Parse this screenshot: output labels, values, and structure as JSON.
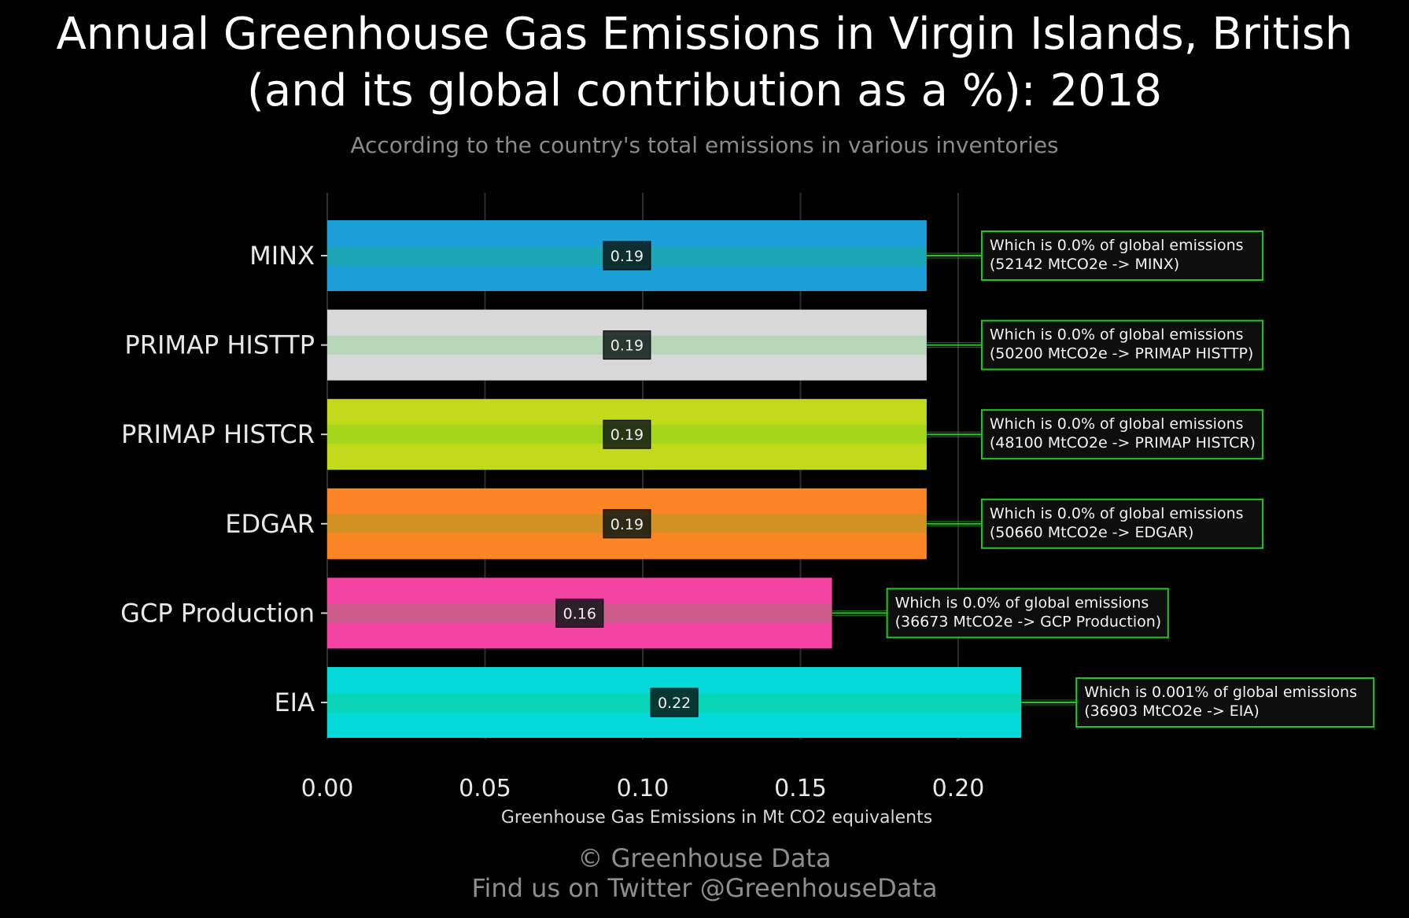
{
  "title_line1": "Annual Greenhouse Gas Emissions in Virgin Islands, British",
  "title_line2": "(and its global contribution as a %): 2018",
  "subtitle": "According to the country's total emissions in various inventories",
  "credit_line1": "© Greenhouse Data",
  "credit_line2": "Find us on Twitter @GreenhouseData",
  "chart_data": {
    "type": "bar",
    "orientation": "horizontal",
    "categories": [
      "MINX",
      "PRIMAP HISTTP",
      "PRIMAP HISTCR",
      "EDGAR",
      "GCP Production",
      "EIA"
    ],
    "values": [
      0.19,
      0.19,
      0.19,
      0.19,
      0.16,
      0.22
    ],
    "value_labels": [
      "0.19",
      "0.19",
      "0.19",
      "0.19",
      "0.16",
      "0.22"
    ],
    "colors": [
      "#1ca0d8",
      "#d8d8d8",
      "#c2d91c",
      "#fb8424",
      "#f344a4",
      "#04d8d8"
    ],
    "annotations": [
      [
        "Which is 0.0% of global emissions",
        "(52142 MtCO2e -> MINX)"
      ],
      [
        "Which is 0.0% of global emissions",
        "(50200 MtCO2e -> PRIMAP HISTTP)"
      ],
      [
        "Which is 0.0% of global emissions",
        "(48100 MtCO2e -> PRIMAP HISTCR)"
      ],
      [
        "Which is 0.0% of global emissions",
        "(50660 MtCO2e -> EDGAR)"
      ],
      [
        "Which is 0.0% of global emissions",
        "(36673 MtCO2e -> GCP Production)"
      ],
      [
        "Which is 0.001% of global emissions",
        "(36903 MtCO2e -> EIA)"
      ]
    ],
    "xlabel": "Greenhouse Gas Emissions in Mt CO2 equivalents",
    "xticks": [
      "0.00",
      "0.05",
      "0.10",
      "0.15",
      "0.20"
    ],
    "xtick_values": [
      0,
      0.05,
      0.1,
      0.15,
      0.2
    ],
    "xlim": [
      0,
      0.24
    ],
    "grid": "vertical",
    "annotation_color": "#22c722"
  }
}
